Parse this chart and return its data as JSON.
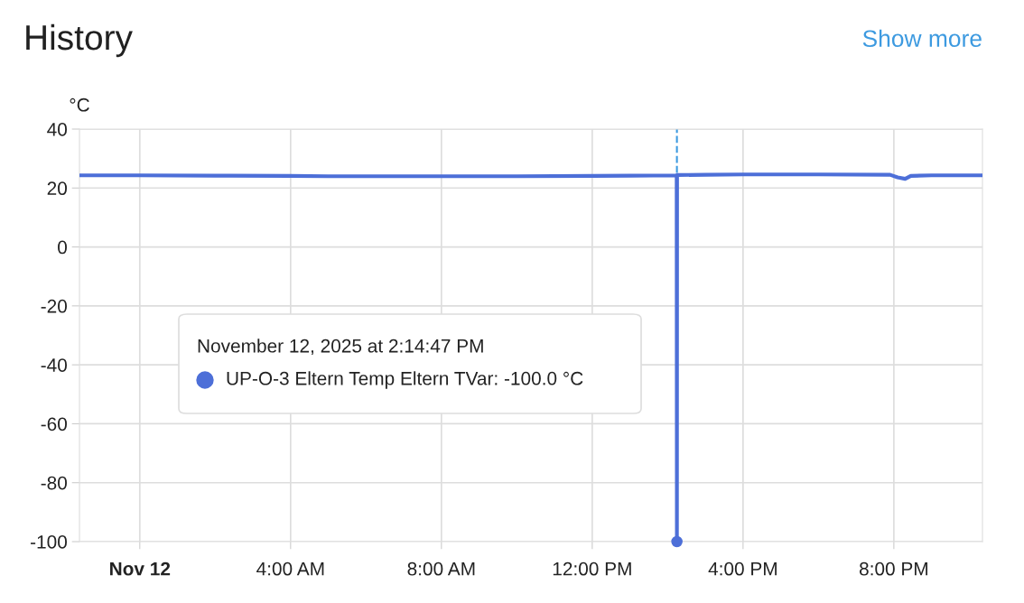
{
  "chart_data": {
    "type": "line",
    "title": "History",
    "ylabel": "°C",
    "x": [
      -1.6,
      0,
      2,
      4,
      5,
      6,
      7,
      8,
      10,
      12,
      13,
      14.24,
      14.246,
      14.25,
      15,
      16,
      18,
      19.9,
      20.1,
      20.3,
      20.45,
      21,
      22.35
    ],
    "series": [
      {
        "color": "#4d6fd8",
        "values": [
          24.3,
          24.3,
          24.2,
          24.1,
          24.0,
          24.0,
          24.0,
          24.0,
          24.0,
          24.1,
          24.2,
          24.3,
          -100.0,
          24.4,
          24.5,
          24.6,
          24.6,
          24.5,
          23.6,
          23.1,
          24.1,
          24.3,
          24.3
        ]
      }
    ],
    "xlim": [
      -1.6,
      22.35
    ],
    "xticks": [
      {
        "value": 0,
        "label": "Nov 12"
      },
      {
        "value": 4,
        "label": "4:00 AM"
      },
      {
        "value": 8,
        "label": "8:00 AM"
      },
      {
        "value": 12,
        "label": "12:00 PM"
      },
      {
        "value": 16,
        "label": "4:00 PM"
      },
      {
        "value": 20,
        "label": "8:00 PM"
      }
    ],
    "ylim": [
      -100,
      40
    ],
    "yticks": [
      -100,
      -80,
      -60,
      -40,
      -20,
      0,
      20,
      40
    ],
    "grid": true,
    "legend": false,
    "marker": "none",
    "line_style": "solid",
    "ref_lines": [
      {
        "axis": "x",
        "value": 14.246,
        "color": "#3d9ae0",
        "line_style": "dashed"
      }
    ],
    "annotations": [
      "Show more",
      "November 12, 2025 at 2:14:47 PM\nUP-O-3 Eltern Temp Eltern TVar: -100.0 °C"
    ]
  }
}
